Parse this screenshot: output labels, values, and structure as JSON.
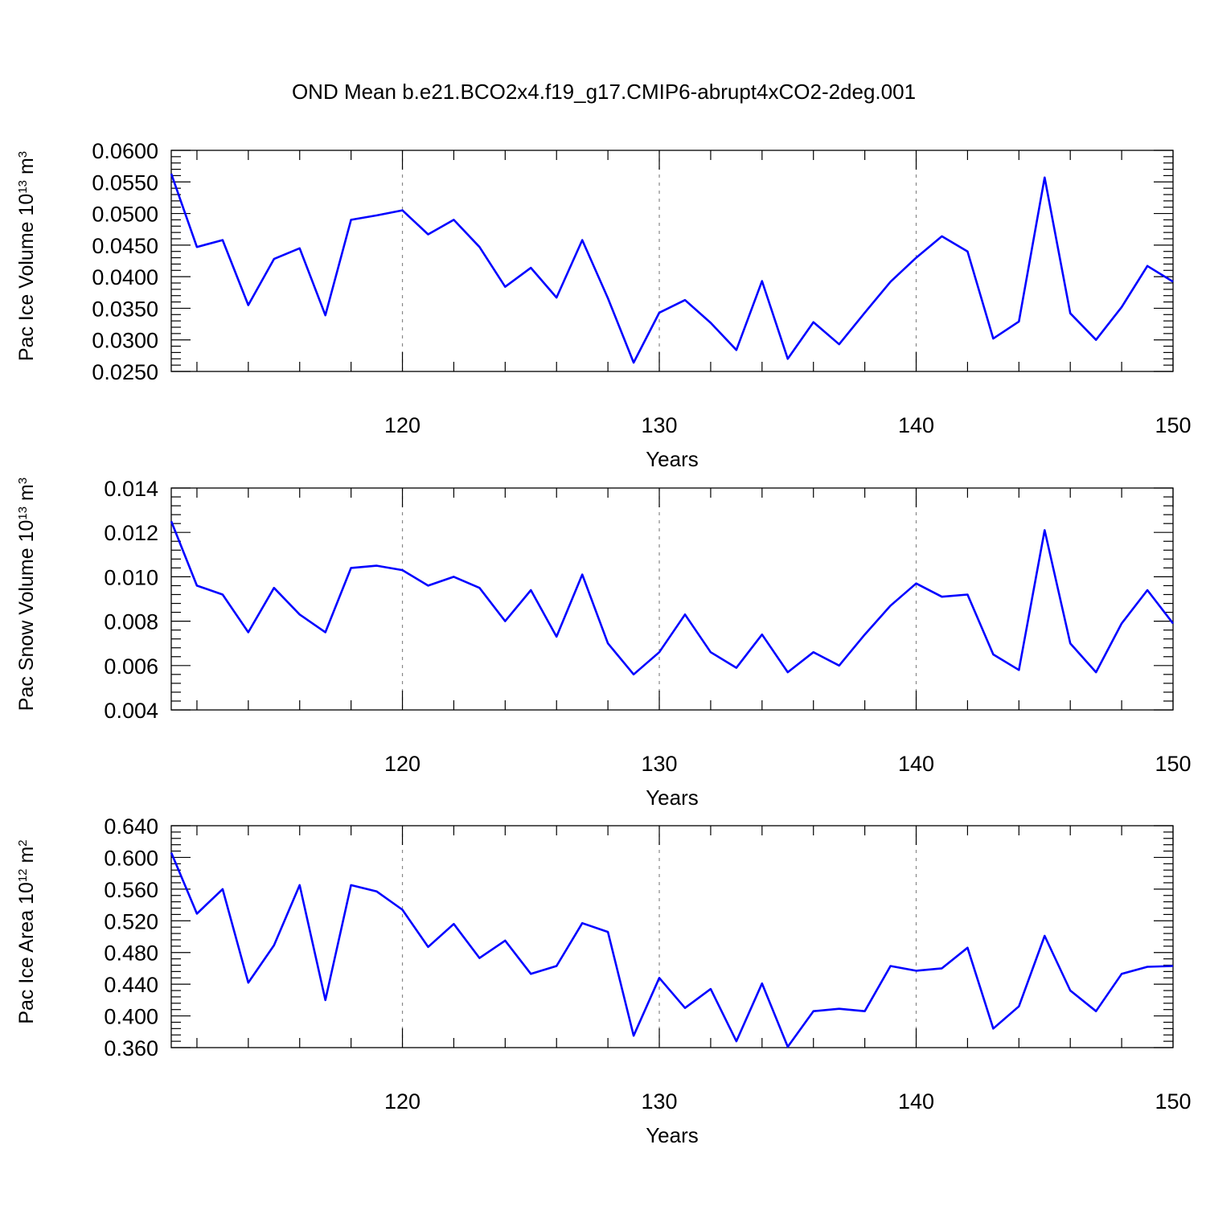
{
  "title": "OND Mean b.e21.BCO2x4.f19_g17.CMIP6-abrupt4xCO2-2deg.001",
  "colors": {
    "line": "#0000ff",
    "grid": "#888888",
    "axis": "#000000"
  },
  "chart_data": [
    {
      "type": "line",
      "ylabel": {
        "main": "Pac Ice Volume 10",
        "exp": "13",
        "unit": " m",
        "unit_exp": "3"
      },
      "xlabel": "Years",
      "xlim": [
        111,
        150
      ],
      "ylim": [
        0.025,
        0.06
      ],
      "yticks": [
        "0.0600",
        "0.0550",
        "0.0500",
        "0.0450",
        "0.0400",
        "0.0350",
        "0.0300",
        "0.0250"
      ],
      "ytick_values": [
        0.06,
        0.055,
        0.05,
        0.045,
        0.04,
        0.035,
        0.03,
        0.025
      ],
      "xticks": [
        "120",
        "130",
        "140",
        "150"
      ],
      "xtick_values": [
        120,
        130,
        140,
        150
      ],
      "grid_x": [
        120,
        130,
        140
      ],
      "series": [
        {
          "x": [
            111,
            112,
            113,
            114,
            115,
            116,
            117,
            118,
            119,
            120,
            121,
            122,
            123,
            124,
            125,
            126,
            127,
            128,
            129,
            130,
            131,
            132,
            133,
            134,
            135,
            136,
            137,
            138,
            139,
            140,
            141,
            142,
            143,
            144,
            145,
            146,
            147,
            148,
            149,
            150
          ],
          "values": [
            0.0563,
            0.0447,
            0.0458,
            0.0355,
            0.0428,
            0.0445,
            0.0339,
            0.049,
            0.0497,
            0.0505,
            0.0467,
            0.049,
            0.0447,
            0.0384,
            0.0414,
            0.0367,
            0.0458,
            0.0366,
            0.0264,
            0.0343,
            0.0363,
            0.0327,
            0.0284,
            0.0393,
            0.027,
            0.0328,
            0.0293,
            0.0343,
            0.0392,
            0.043,
            0.0464,
            0.044,
            0.0302,
            0.0329,
            0.0557,
            0.0342,
            0.03,
            0.0352,
            0.0417,
            0.0392
          ]
        }
      ]
    },
    {
      "type": "line",
      "ylabel": {
        "main": "Pac Snow Volume 10",
        "exp": "13",
        "unit": " m",
        "unit_exp": "3"
      },
      "xlabel": "Years",
      "xlim": [
        111,
        150
      ],
      "ylim": [
        0.004,
        0.014
      ],
      "yticks": [
        "0.014",
        "0.012",
        "0.010",
        "0.008",
        "0.006",
        "0.004"
      ],
      "ytick_values": [
        0.014,
        0.012,
        0.01,
        0.008,
        0.006,
        0.004
      ],
      "xticks": [
        "120",
        "130",
        "140",
        "150"
      ],
      "xtick_values": [
        120,
        130,
        140,
        150
      ],
      "grid_x": [
        120,
        130,
        140
      ],
      "series": [
        {
          "x": [
            111,
            112,
            113,
            114,
            115,
            116,
            117,
            118,
            119,
            120,
            121,
            122,
            123,
            124,
            125,
            126,
            127,
            128,
            129,
            130,
            131,
            132,
            133,
            134,
            135,
            136,
            137,
            138,
            139,
            140,
            141,
            142,
            143,
            144,
            145,
            146,
            147,
            148,
            149,
            150
          ],
          "values": [
            0.0125,
            0.0096,
            0.0092,
            0.0075,
            0.0095,
            0.0083,
            0.0075,
            0.0104,
            0.0105,
            0.0103,
            0.0096,
            0.01,
            0.0095,
            0.008,
            0.0094,
            0.0073,
            0.0101,
            0.007,
            0.0056,
            0.0066,
            0.0083,
            0.0066,
            0.0059,
            0.0074,
            0.0057,
            0.0066,
            0.006,
            0.0074,
            0.0087,
            0.0097,
            0.0091,
            0.0092,
            0.0065,
            0.0058,
            0.0121,
            0.007,
            0.0057,
            0.0079,
            0.0094,
            0.0079
          ]
        }
      ]
    },
    {
      "type": "line",
      "ylabel": {
        "main": "Pac Ice Area 10",
        "exp": "12",
        "unit": " m",
        "unit_exp": "2"
      },
      "xlabel": "Years",
      "xlim": [
        111,
        150
      ],
      "ylim": [
        0.36,
        0.64
      ],
      "yticks": [
        "0.640",
        "0.600",
        "0.560",
        "0.520",
        "0.480",
        "0.440",
        "0.400",
        "0.360"
      ],
      "ytick_values": [
        0.64,
        0.6,
        0.56,
        0.52,
        0.48,
        0.44,
        0.4,
        0.36
      ],
      "xticks": [
        "120",
        "130",
        "140",
        "150"
      ],
      "xtick_values": [
        120,
        130,
        140,
        150
      ],
      "grid_x": [
        120,
        130,
        140
      ],
      "series": [
        {
          "x": [
            111,
            112,
            113,
            114,
            115,
            116,
            117,
            118,
            119,
            120,
            121,
            122,
            123,
            124,
            125,
            126,
            127,
            128,
            129,
            130,
            131,
            132,
            133,
            134,
            135,
            136,
            137,
            138,
            139,
            140,
            141,
            142,
            143,
            144,
            145,
            146,
            147,
            148,
            149,
            150
          ],
          "values": [
            0.606,
            0.529,
            0.56,
            0.442,
            0.489,
            0.565,
            0.42,
            0.565,
            0.557,
            0.534,
            0.487,
            0.516,
            0.473,
            0.495,
            0.453,
            0.463,
            0.517,
            0.506,
            0.375,
            0.448,
            0.41,
            0.434,
            0.368,
            0.441,
            0.361,
            0.406,
            0.409,
            0.406,
            0.463,
            0.457,
            0.46,
            0.486,
            0.384,
            0.412,
            0.501,
            0.432,
            0.406,
            0.453,
            0.462,
            0.463
          ]
        }
      ]
    }
  ]
}
